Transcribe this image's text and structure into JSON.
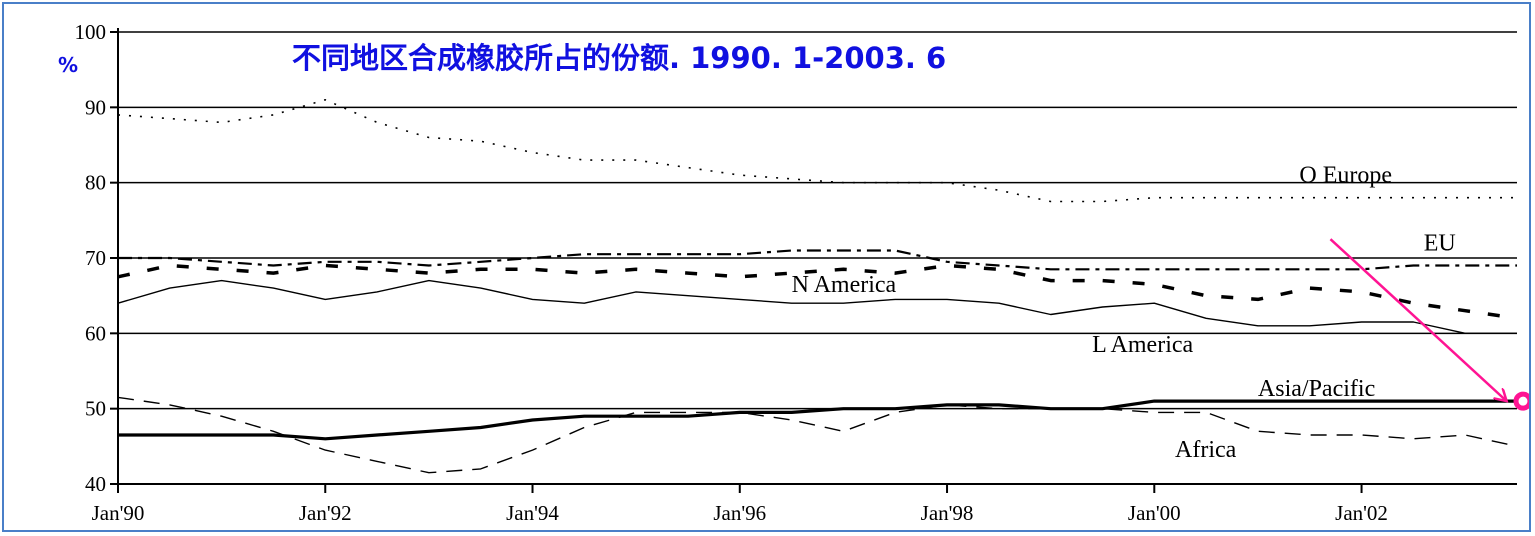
{
  "chart_data": {
    "type": "line",
    "title": "不同地区合成橡胶所占的份额. 1990. 1-2003. 6",
    "ylabel": "%",
    "ylim": [
      40,
      100
    ],
    "yticks": [
      "40",
      "50",
      "60",
      "70",
      "80",
      "90",
      "100"
    ],
    "xlim": [
      1990.0,
      2003.5
    ],
    "xticks": [
      {
        "label": "Jan'90",
        "x": 1990
      },
      {
        "label": "Jan'92",
        "x": 1992
      },
      {
        "label": "Jan'94",
        "x": 1994
      },
      {
        "label": "Jan'96",
        "x": 1996
      },
      {
        "label": "Jan'98",
        "x": 1998
      },
      {
        "label": "Jan'00",
        "x": 2000
      },
      {
        "label": "Jan'02",
        "x": 2002
      }
    ],
    "grid": "horizontal",
    "series": [
      {
        "name": "O Europe",
        "style": "dotted",
        "points": [
          [
            1990.0,
            89
          ],
          [
            1990.5,
            88.5
          ],
          [
            1991.0,
            88
          ],
          [
            1991.5,
            89
          ],
          [
            1992.0,
            91
          ],
          [
            1992.5,
            88
          ],
          [
            1993.0,
            86
          ],
          [
            1993.5,
            85.5
          ],
          [
            1994.0,
            84
          ],
          [
            1994.5,
            83
          ],
          [
            1995.0,
            83
          ],
          [
            1995.5,
            82
          ],
          [
            1996.0,
            81
          ],
          [
            1996.5,
            80.5
          ],
          [
            1997.0,
            80
          ],
          [
            1997.5,
            80
          ],
          [
            1998.0,
            80
          ],
          [
            1998.5,
            79
          ],
          [
            1999.0,
            77.5
          ],
          [
            1999.5,
            77.5
          ],
          [
            2000.0,
            78
          ],
          [
            2000.5,
            78
          ],
          [
            2001.0,
            78
          ],
          [
            2001.5,
            78
          ],
          [
            2002.0,
            78
          ],
          [
            2002.5,
            78
          ],
          [
            2003.0,
            78
          ],
          [
            2003.5,
            78
          ]
        ]
      },
      {
        "name": "EU",
        "style": "dashed-bold",
        "points": [
          [
            1990.0,
            67.5
          ],
          [
            1990.5,
            69
          ],
          [
            1991.0,
            68.5
          ],
          [
            1991.5,
            68
          ],
          [
            1992.0,
            69
          ],
          [
            1992.5,
            68.5
          ],
          [
            1993.0,
            68
          ],
          [
            1993.5,
            68.5
          ],
          [
            1994.0,
            68.5
          ],
          [
            1994.5,
            68
          ],
          [
            1995.0,
            68.5
          ],
          [
            1995.5,
            68
          ],
          [
            1996.0,
            67.5
          ],
          [
            1996.5,
            68
          ],
          [
            1997.0,
            68.5
          ],
          [
            1997.5,
            68
          ],
          [
            1998.0,
            69
          ],
          [
            1998.5,
            68.5
          ],
          [
            1999.0,
            67
          ],
          [
            1999.5,
            67
          ],
          [
            2000.0,
            66.5
          ],
          [
            2000.5,
            65
          ],
          [
            2001.0,
            64.5
          ],
          [
            2001.5,
            66
          ],
          [
            2002.0,
            65.5
          ],
          [
            2002.5,
            64
          ],
          [
            2003.0,
            63
          ],
          [
            2003.5,
            62
          ]
        ]
      },
      {
        "name": "N America",
        "style": "dash-dot",
        "points": [
          [
            1990.0,
            70
          ],
          [
            1990.5,
            70
          ],
          [
            1991.0,
            69.5
          ],
          [
            1991.5,
            69
          ],
          [
            1992.0,
            69.5
          ],
          [
            1992.5,
            69.5
          ],
          [
            1993.0,
            69
          ],
          [
            1993.5,
            69.5
          ],
          [
            1994.0,
            70
          ],
          [
            1994.5,
            70.5
          ],
          [
            1995.0,
            70.5
          ],
          [
            1995.5,
            70.5
          ],
          [
            1996.0,
            70.5
          ],
          [
            1996.5,
            71
          ],
          [
            1997.0,
            71
          ],
          [
            1997.5,
            71
          ],
          [
            1998.0,
            69.5
          ],
          [
            1998.5,
            69
          ],
          [
            1999.0,
            68.5
          ],
          [
            1999.5,
            68.5
          ],
          [
            2000.0,
            68.5
          ],
          [
            2000.5,
            68.5
          ],
          [
            2001.0,
            68.5
          ],
          [
            2001.5,
            68.5
          ],
          [
            2002.0,
            68.5
          ],
          [
            2002.5,
            69
          ],
          [
            2003.0,
            69
          ],
          [
            2003.5,
            69
          ]
        ]
      },
      {
        "name": "L America",
        "style": "solid-thin",
        "points": [
          [
            1990.0,
            64
          ],
          [
            1990.5,
            66
          ],
          [
            1991.0,
            67
          ],
          [
            1991.5,
            66
          ],
          [
            1992.0,
            64.5
          ],
          [
            1992.5,
            65.5
          ],
          [
            1993.0,
            67
          ],
          [
            1993.5,
            66
          ],
          [
            1994.0,
            64.5
          ],
          [
            1994.5,
            64
          ],
          [
            1995.0,
            65.5
          ],
          [
            1995.5,
            65
          ],
          [
            1996.0,
            64.5
          ],
          [
            1996.5,
            64
          ],
          [
            1997.0,
            64
          ],
          [
            1997.5,
            64.5
          ],
          [
            1998.0,
            64.5
          ],
          [
            1998.5,
            64
          ],
          [
            1999.0,
            62.5
          ],
          [
            1999.5,
            63.5
          ],
          [
            2000.0,
            64
          ],
          [
            2000.5,
            62
          ],
          [
            2001.0,
            61
          ],
          [
            2001.5,
            61
          ],
          [
            2002.0,
            61.5
          ],
          [
            2002.5,
            61.5
          ],
          [
            2003.0,
            60
          ],
          [
            2003.5,
            60
          ]
        ]
      },
      {
        "name": "Asia/Pacific",
        "style": "solid-bold",
        "points": [
          [
            1990.0,
            46.5
          ],
          [
            1990.5,
            46.5
          ],
          [
            1991.0,
            46.5
          ],
          [
            1991.5,
            46.5
          ],
          [
            1992.0,
            46
          ],
          [
            1992.5,
            46.5
          ],
          [
            1993.0,
            47
          ],
          [
            1993.5,
            47.5
          ],
          [
            1994.0,
            48.5
          ],
          [
            1994.5,
            49
          ],
          [
            1995.0,
            49
          ],
          [
            1995.5,
            49
          ],
          [
            1996.0,
            49.5
          ],
          [
            1996.5,
            49.5
          ],
          [
            1997.0,
            50
          ],
          [
            1997.5,
            50
          ],
          [
            1998.0,
            50.5
          ],
          [
            1998.5,
            50.5
          ],
          [
            1999.0,
            50
          ],
          [
            1999.5,
            50
          ],
          [
            2000.0,
            51
          ],
          [
            2000.5,
            51
          ],
          [
            2001.0,
            51
          ],
          [
            2001.5,
            51
          ],
          [
            2002.0,
            51
          ],
          [
            2002.5,
            51
          ],
          [
            2003.0,
            51
          ],
          [
            2003.5,
            51
          ]
        ]
      },
      {
        "name": "Africa",
        "style": "dashed-thin",
        "points": [
          [
            1990.0,
            51.5
          ],
          [
            1990.5,
            50.5
          ],
          [
            1991.0,
            49
          ],
          [
            1991.5,
            47
          ],
          [
            1992.0,
            44.5
          ],
          [
            1992.5,
            43
          ],
          [
            1993.0,
            41.5
          ],
          [
            1993.5,
            42
          ],
          [
            1994.0,
            44.5
          ],
          [
            1994.5,
            47.5
          ],
          [
            1995.0,
            49.5
          ],
          [
            1995.5,
            49.5
          ],
          [
            1996.0,
            49.5
          ],
          [
            1996.5,
            48.5
          ],
          [
            1997.0,
            47
          ],
          [
            1997.5,
            49.5
          ],
          [
            1998.0,
            50.5
          ],
          [
            1998.5,
            50
          ],
          [
            1999.0,
            50
          ],
          [
            1999.5,
            50
          ],
          [
            2000.0,
            49.5
          ],
          [
            2000.5,
            49.5
          ],
          [
            2001.0,
            47
          ],
          [
            2001.5,
            46.5
          ],
          [
            2002.0,
            46.5
          ],
          [
            2002.5,
            46
          ],
          [
            2003.0,
            46.5
          ],
          [
            2003.5,
            45
          ]
        ]
      }
    ],
    "annotations": [
      {
        "text": "O Europe",
        "x": 2001.4,
        "y": 80
      },
      {
        "text": "EU",
        "x": 2002.6,
        "y": 71
      },
      {
        "text": "N America",
        "x": 1996.5,
        "y": 65.5
      },
      {
        "text": "L America",
        "x": 1999.4,
        "y": 57.5
      },
      {
        "text": "Asia/Pacific",
        "x": 2001.0,
        "y": 51.7
      },
      {
        "text": "Africa",
        "x": 2000.2,
        "y": 43.6
      }
    ],
    "highlight": {
      "type": "arrow-to-point",
      "color": "#ff1493",
      "from": [
        2001.7,
        72.5
      ],
      "to": [
        2003.4,
        51
      ],
      "marker_at": [
        2003.5,
        51
      ]
    }
  }
}
